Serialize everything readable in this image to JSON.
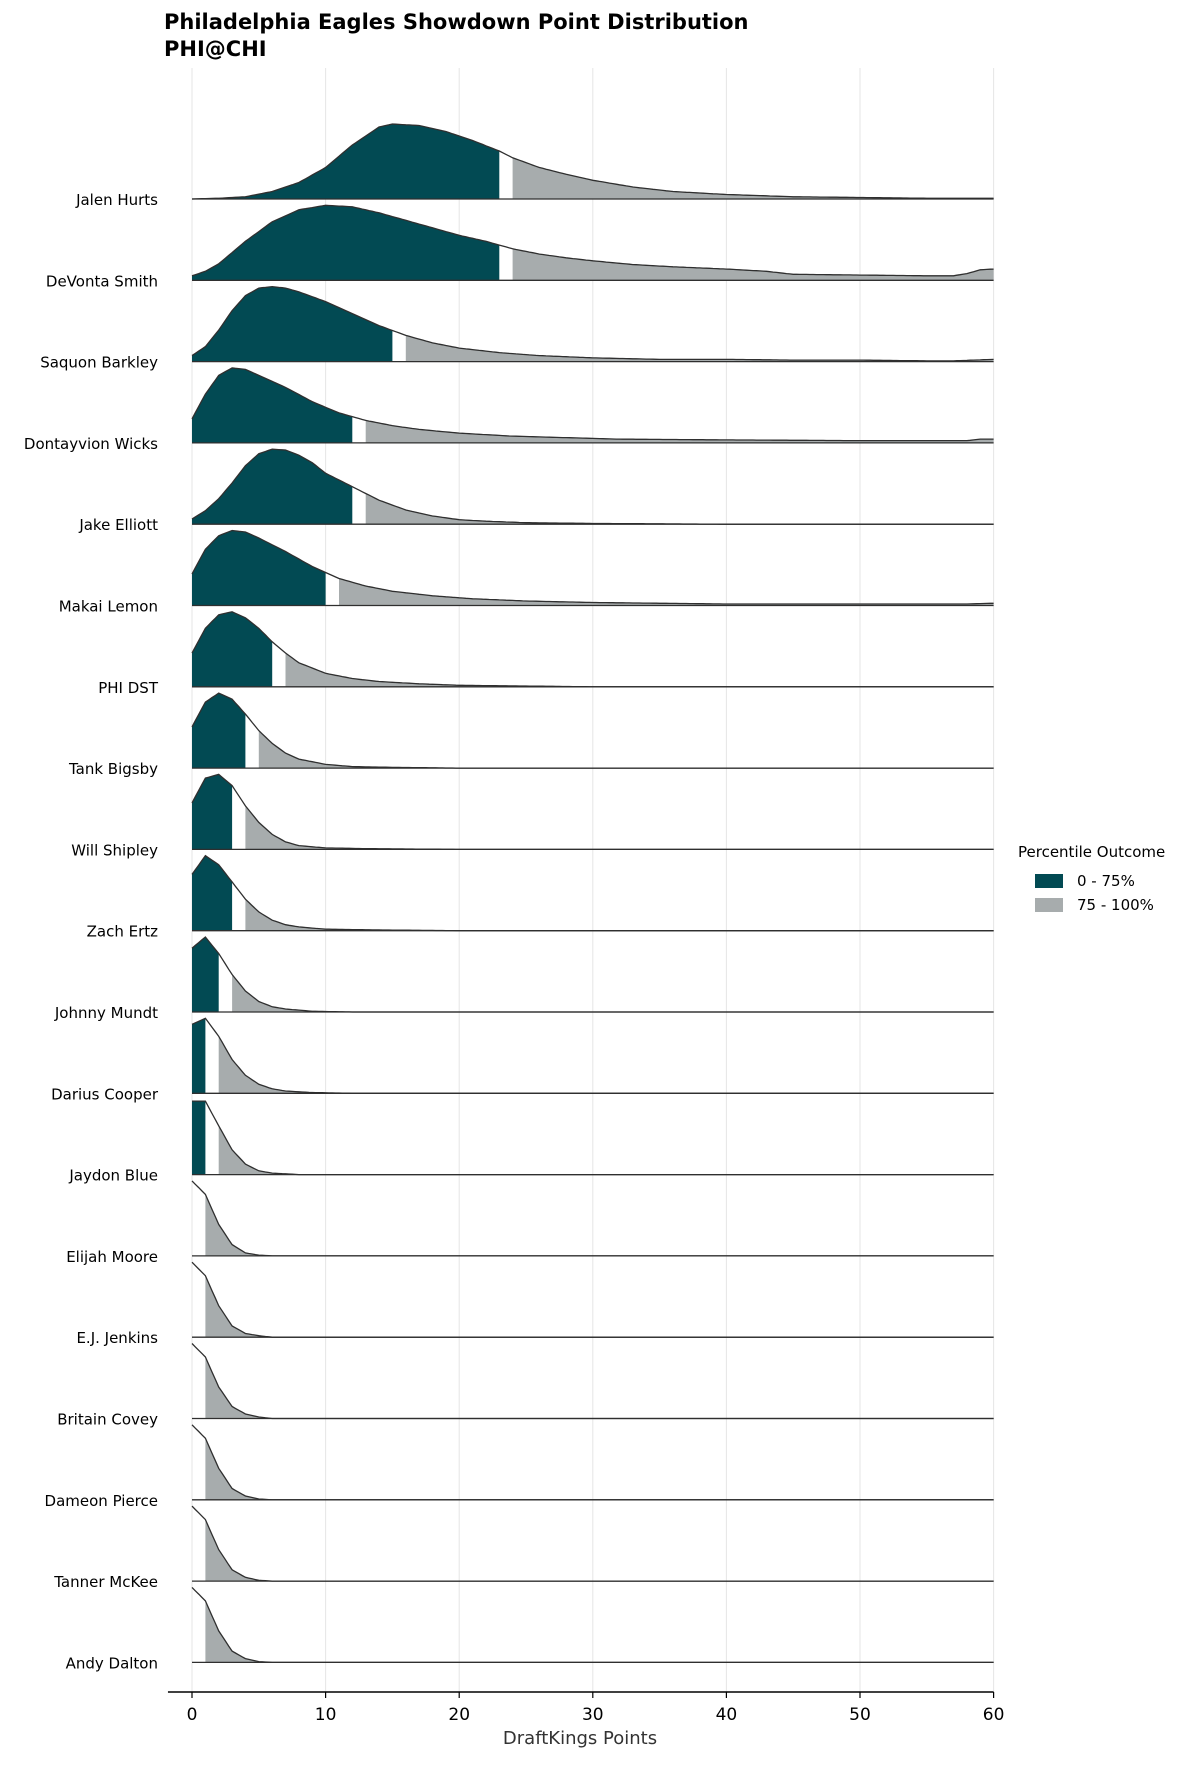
{
  "chart_data": {
    "type": "area",
    "title": "Philadelphia Eagles Showdown Point Distribution",
    "subtitle": "PHI@CHI",
    "xlabel": "DraftKings Points",
    "ylabel": "",
    "xlim": [
      -2,
      60
    ],
    "xticks": [
      0,
      10,
      20,
      30,
      40,
      50,
      60
    ],
    "grid": "vertical",
    "legend": {
      "title": "Percentile Outcome",
      "placement": "right",
      "entries": [
        {
          "label": "0 - 75%",
          "color": "#024a53"
        },
        {
          "label": "75 - 100%",
          "color": "#a7acad"
        }
      ]
    },
    "colors": {
      "low": "#024a53",
      "high": "#a7acad",
      "line": "#2f2f2f",
      "grid": "#e5e5e5"
    },
    "series": [
      {
        "name": "Jalen Hurts",
        "p75": 23,
        "density": [
          [
            0,
            0
          ],
          [
            2,
            0.01
          ],
          [
            4,
            0.03
          ],
          [
            6,
            0.1
          ],
          [
            8,
            0.22
          ],
          [
            10,
            0.42
          ],
          [
            12,
            0.72
          ],
          [
            14,
            0.96
          ],
          [
            15,
            1.0
          ],
          [
            17,
            0.98
          ],
          [
            19,
            0.9
          ],
          [
            21,
            0.78
          ],
          [
            23,
            0.64
          ],
          [
            24,
            0.55
          ],
          [
            26,
            0.42
          ],
          [
            28,
            0.33
          ],
          [
            30,
            0.25
          ],
          [
            33,
            0.16
          ],
          [
            36,
            0.1
          ],
          [
            40,
            0.06
          ],
          [
            45,
            0.03
          ],
          [
            50,
            0.02
          ],
          [
            55,
            0.01
          ],
          [
            60,
            0.01
          ]
        ]
      },
      {
        "name": "DeVonta Smith",
        "p75": 23,
        "density": [
          [
            0,
            0.06
          ],
          [
            1,
            0.12
          ],
          [
            2,
            0.22
          ],
          [
            4,
            0.52
          ],
          [
            6,
            0.78
          ],
          [
            8,
            0.94
          ],
          [
            10,
            1.0
          ],
          [
            12,
            0.98
          ],
          [
            14,
            0.9
          ],
          [
            16,
            0.8
          ],
          [
            18,
            0.7
          ],
          [
            20,
            0.6
          ],
          [
            22,
            0.52
          ],
          [
            24,
            0.42
          ],
          [
            26,
            0.35
          ],
          [
            28,
            0.3
          ],
          [
            30,
            0.26
          ],
          [
            33,
            0.21
          ],
          [
            36,
            0.18
          ],
          [
            40,
            0.15
          ],
          [
            43,
            0.12
          ],
          [
            45,
            0.08
          ],
          [
            50,
            0.07
          ],
          [
            55,
            0.06
          ],
          [
            57,
            0.06
          ],
          [
            58,
            0.09
          ],
          [
            59,
            0.14
          ],
          [
            60,
            0.15
          ]
        ]
      },
      {
        "name": "Saquon Barkley",
        "p75": 15,
        "density": [
          [
            0,
            0.08
          ],
          [
            1,
            0.2
          ],
          [
            2,
            0.42
          ],
          [
            3,
            0.68
          ],
          [
            4,
            0.88
          ],
          [
            5,
            0.98
          ],
          [
            6,
            1.0
          ],
          [
            7,
            0.98
          ],
          [
            8,
            0.93
          ],
          [
            10,
            0.8
          ],
          [
            12,
            0.64
          ],
          [
            14,
            0.48
          ],
          [
            16,
            0.35
          ],
          [
            18,
            0.25
          ],
          [
            20,
            0.18
          ],
          [
            23,
            0.12
          ],
          [
            26,
            0.08
          ],
          [
            30,
            0.05
          ],
          [
            35,
            0.03
          ],
          [
            40,
            0.03
          ],
          [
            45,
            0.02
          ],
          [
            50,
            0.02
          ],
          [
            55,
            0.01
          ],
          [
            57,
            0.01
          ],
          [
            60,
            0.03
          ]
        ]
      },
      {
        "name": "Dontayvion Wicks",
        "p75": 12,
        "density": [
          [
            0,
            0.32
          ],
          [
            1,
            0.65
          ],
          [
            2,
            0.9
          ],
          [
            3,
            1.0
          ],
          [
            4,
            0.98
          ],
          [
            5,
            0.9
          ],
          [
            7,
            0.74
          ],
          [
            9,
            0.55
          ],
          [
            11,
            0.4
          ],
          [
            13,
            0.3
          ],
          [
            15,
            0.23
          ],
          [
            17,
            0.18
          ],
          [
            20,
            0.13
          ],
          [
            24,
            0.09
          ],
          [
            28,
            0.07
          ],
          [
            32,
            0.05
          ],
          [
            40,
            0.04
          ],
          [
            50,
            0.03
          ],
          [
            58,
            0.03
          ],
          [
            59,
            0.05
          ],
          [
            60,
            0.05
          ]
        ]
      },
      {
        "name": "Jake Elliott",
        "p75": 12,
        "density": [
          [
            0,
            0.07
          ],
          [
            1,
            0.18
          ],
          [
            2,
            0.34
          ],
          [
            3,
            0.55
          ],
          [
            4,
            0.78
          ],
          [
            5,
            0.94
          ],
          [
            6,
            1.0
          ],
          [
            7,
            0.99
          ],
          [
            8,
            0.92
          ],
          [
            9,
            0.82
          ],
          [
            10,
            0.68
          ],
          [
            12,
            0.5
          ],
          [
            14,
            0.32
          ],
          [
            16,
            0.19
          ],
          [
            18,
            0.11
          ],
          [
            20,
            0.06
          ],
          [
            22,
            0.04
          ],
          [
            25,
            0.02
          ],
          [
            30,
            0.01
          ],
          [
            40,
            0
          ],
          [
            60,
            0
          ]
        ]
      },
      {
        "name": "Makai Lemon",
        "p75": 10,
        "density": [
          [
            0,
            0.42
          ],
          [
            1,
            0.75
          ],
          [
            2,
            0.93
          ],
          [
            3,
            1.0
          ],
          [
            4,
            0.98
          ],
          [
            5,
            0.9
          ],
          [
            7,
            0.72
          ],
          [
            9,
            0.52
          ],
          [
            11,
            0.36
          ],
          [
            13,
            0.26
          ],
          [
            15,
            0.19
          ],
          [
            18,
            0.13
          ],
          [
            21,
            0.09
          ],
          [
            25,
            0.06
          ],
          [
            30,
            0.04
          ],
          [
            40,
            0.02
          ],
          [
            50,
            0.02
          ],
          [
            58,
            0.02
          ],
          [
            60,
            0.03
          ]
        ]
      },
      {
        "name": "PHI DST",
        "p75": 6,
        "density": [
          [
            0,
            0.45
          ],
          [
            1,
            0.78
          ],
          [
            2,
            0.96
          ],
          [
            3,
            1.0
          ],
          [
            4,
            0.92
          ],
          [
            5,
            0.78
          ],
          [
            6,
            0.6
          ],
          [
            7,
            0.45
          ],
          [
            8,
            0.32
          ],
          [
            10,
            0.18
          ],
          [
            12,
            0.11
          ],
          [
            14,
            0.07
          ],
          [
            17,
            0.04
          ],
          [
            20,
            0.02
          ],
          [
            25,
            0.01
          ],
          [
            30,
            0
          ],
          [
            60,
            0
          ]
        ]
      },
      {
        "name": "Tank Bigsby",
        "p75": 4,
        "density": [
          [
            0,
            0.55
          ],
          [
            1,
            0.88
          ],
          [
            2,
            1.0
          ],
          [
            3,
            0.92
          ],
          [
            4,
            0.72
          ],
          [
            5,
            0.5
          ],
          [
            6,
            0.33
          ],
          [
            7,
            0.2
          ],
          [
            8,
            0.12
          ],
          [
            10,
            0.05
          ],
          [
            12,
            0.02
          ],
          [
            15,
            0.01
          ],
          [
            20,
            0
          ],
          [
            60,
            0
          ]
        ]
      },
      {
        "name": "Will Shipley",
        "p75": 3,
        "density": [
          [
            0,
            0.62
          ],
          [
            1,
            0.95
          ],
          [
            2,
            1.0
          ],
          [
            3,
            0.85
          ],
          [
            4,
            0.58
          ],
          [
            5,
            0.36
          ],
          [
            6,
            0.2
          ],
          [
            7,
            0.1
          ],
          [
            8,
            0.05
          ],
          [
            10,
            0.02
          ],
          [
            13,
            0.01
          ],
          [
            20,
            0
          ],
          [
            60,
            0
          ]
        ]
      },
      {
        "name": "Zach Ertz",
        "p75": 3,
        "density": [
          [
            0,
            0.75
          ],
          [
            1,
            1.0
          ],
          [
            2,
            0.88
          ],
          [
            3,
            0.65
          ],
          [
            4,
            0.42
          ],
          [
            5,
            0.25
          ],
          [
            6,
            0.14
          ],
          [
            7,
            0.08
          ],
          [
            8,
            0.05
          ],
          [
            10,
            0.02
          ],
          [
            14,
            0.01
          ],
          [
            20,
            0
          ],
          [
            60,
            0
          ]
        ]
      },
      {
        "name": "Johnny Mundt",
        "p75": 2,
        "density": [
          [
            0,
            0.85
          ],
          [
            1,
            1.0
          ],
          [
            2,
            0.78
          ],
          [
            3,
            0.5
          ],
          [
            4,
            0.28
          ],
          [
            5,
            0.14
          ],
          [
            6,
            0.07
          ],
          [
            7,
            0.04
          ],
          [
            9,
            0.01
          ],
          [
            12,
            0
          ],
          [
            60,
            0
          ]
        ]
      },
      {
        "name": "Darius Cooper",
        "p75": 1,
        "density": [
          [
            0,
            0.92
          ],
          [
            1,
            1.0
          ],
          [
            2,
            0.76
          ],
          [
            3,
            0.45
          ],
          [
            4,
            0.24
          ],
          [
            5,
            0.12
          ],
          [
            6,
            0.06
          ],
          [
            7,
            0.03
          ],
          [
            9,
            0.01
          ],
          [
            12,
            0
          ],
          [
            60,
            0
          ]
        ]
      },
      {
        "name": "Jaydon Blue",
        "p75": 1,
        "density": [
          [
            0,
            0.98
          ],
          [
            1,
            0.98
          ],
          [
            2,
            0.65
          ],
          [
            3,
            0.33
          ],
          [
            4,
            0.14
          ],
          [
            5,
            0.05
          ],
          [
            6,
            0.02
          ],
          [
            8,
            0
          ],
          [
            60,
            0
          ]
        ]
      },
      {
        "name": "Elijah Moore",
        "p75": 0,
        "density": [
          [
            0,
            1.0
          ],
          [
            1,
            0.82
          ],
          [
            2,
            0.42
          ],
          [
            3,
            0.15
          ],
          [
            4,
            0.04
          ],
          [
            5,
            0.01
          ],
          [
            6,
            0
          ],
          [
            60,
            0
          ]
        ]
      },
      {
        "name": "E.J. Jenkins",
        "p75": 0,
        "density": [
          [
            0,
            1.0
          ],
          [
            1,
            0.82
          ],
          [
            2,
            0.42
          ],
          [
            3,
            0.15
          ],
          [
            4,
            0.05
          ],
          [
            5,
            0.02
          ],
          [
            6,
            0
          ],
          [
            60,
            0
          ]
        ]
      },
      {
        "name": "Britain Covey",
        "p75": 0,
        "density": [
          [
            0,
            1.0
          ],
          [
            1,
            0.82
          ],
          [
            2,
            0.42
          ],
          [
            3,
            0.16
          ],
          [
            4,
            0.06
          ],
          [
            5,
            0.02
          ],
          [
            6,
            0
          ],
          [
            60,
            0
          ]
        ]
      },
      {
        "name": "Dameon Pierce",
        "p75": 0,
        "density": [
          [
            0,
            1.0
          ],
          [
            1,
            0.82
          ],
          [
            2,
            0.42
          ],
          [
            3,
            0.15
          ],
          [
            4,
            0.05
          ],
          [
            5,
            0.01
          ],
          [
            6,
            0
          ],
          [
            60,
            0
          ]
        ]
      },
      {
        "name": "Tanner McKee",
        "p75": 0,
        "density": [
          [
            0,
            1.0
          ],
          [
            1,
            0.82
          ],
          [
            2,
            0.42
          ],
          [
            3,
            0.15
          ],
          [
            4,
            0.05
          ],
          [
            5,
            0.01
          ],
          [
            6,
            0
          ],
          [
            60,
            0
          ]
        ]
      },
      {
        "name": "Andy Dalton",
        "p75": 0,
        "density": [
          [
            0,
            1.0
          ],
          [
            1,
            0.82
          ],
          [
            2,
            0.42
          ],
          [
            3,
            0.15
          ],
          [
            4,
            0.05
          ],
          [
            5,
            0.01
          ],
          [
            6,
            0
          ],
          [
            60,
            0
          ]
        ]
      }
    ]
  }
}
